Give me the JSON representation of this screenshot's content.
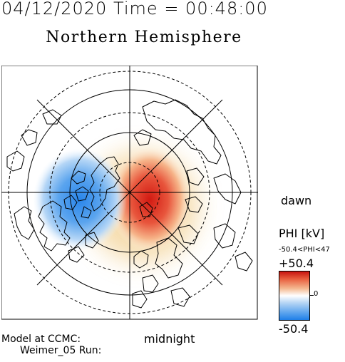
{
  "header": {
    "datetime": "04/12/2020 Time = 00:48:00",
    "title": "Northern Hemisphere"
  },
  "map": {
    "projection": "polar-stereographic",
    "pole": "north",
    "latitude_circles": [
      50,
      60,
      70,
      80
    ],
    "model_field": "PHI",
    "positive_cell": "dawn side, red",
    "negative_cell": "dusk side, blue"
  },
  "labels": {
    "dawn": "dawn",
    "midnight": "midnight"
  },
  "colorbar": {
    "title": "PHI [kV]",
    "range_text": "-50.4<PHI<47",
    "max_label": "+50.4",
    "zero_label": "0",
    "min_label": "-50.4",
    "max_color": "#c81410",
    "mid_color": "#ffffff",
    "min_color": "#1f7fe8"
  },
  "footer": {
    "model_line": "Model at CCMC:",
    "run_line": "Weimer_05 Run:"
  }
}
